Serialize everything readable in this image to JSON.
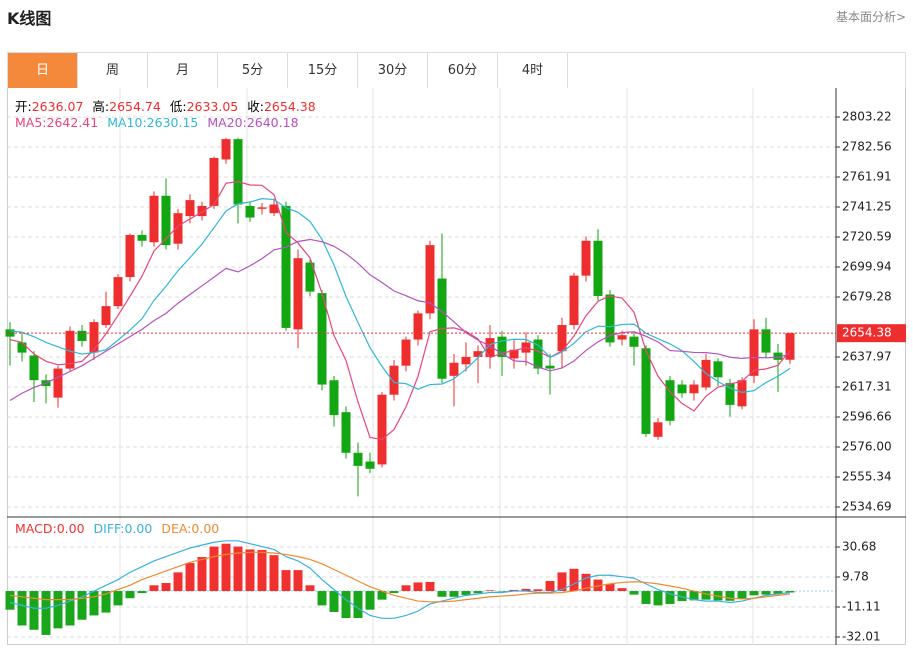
{
  "header": {
    "title": "K线图",
    "link": "基本面分析>"
  },
  "tabs": [
    {
      "label": "日",
      "selected": true
    },
    {
      "label": "周",
      "selected": false
    },
    {
      "label": "月",
      "selected": false
    },
    {
      "label": "5分",
      "selected": false
    },
    {
      "label": "15分",
      "selected": false
    },
    {
      "label": "30分",
      "selected": false
    },
    {
      "label": "60分",
      "selected": false
    },
    {
      "label": "4时",
      "selected": false
    }
  ],
  "chart_data": [
    {
      "type": "candlestick",
      "up_color": "#ee2e2e",
      "down_color": "#12a612",
      "info": [
        {
          "label": "开:",
          "value": 2636.07
        },
        {
          "label": "高:",
          "value": 2654.74
        },
        {
          "label": "低:",
          "value": 2633.05
        },
        {
          "label": "收:",
          "value": 2654.38
        }
      ],
      "last_price": 2654.38,
      "open": [
        2657,
        2648,
        2639,
        2622,
        2610,
        2630,
        2656,
        2641,
        2660,
        2673,
        2693,
        2722,
        2717,
        2749,
        2716,
        2735,
        2735,
        2742,
        2774,
        2788,
        2742,
        2740,
        2737,
        2742,
        2657,
        2703,
        2682,
        2622,
        2600,
        2572,
        2566,
        2564,
        2612,
        2632,
        2650,
        2668,
        2692,
        2625,
        2633,
        2638,
        2638,
        2652,
        2637,
        2641,
        2650,
        2632,
        2642,
        2660,
        2694,
        2718,
        2681,
        2650,
        2652,
        2644,
        2583,
        2622,
        2619,
        2613,
        2617,
        2635,
        2620,
        2604,
        2625,
        2657,
        2641,
        2636.07
      ],
      "high": [
        2662,
        2655,
        2642,
        2626,
        2632,
        2659,
        2660,
        2664,
        2683,
        2695,
        2723,
        2725,
        2752,
        2761,
        2740,
        2750,
        2745,
        2776,
        2789,
        2789,
        2745,
        2744,
        2747,
        2745,
        2712,
        2705,
        2684,
        2625,
        2604,
        2579,
        2572,
        2614,
        2636,
        2652,
        2670,
        2718,
        2723,
        2640,
        2648,
        2646,
        2660,
        2656,
        2650,
        2655,
        2653,
        2640,
        2665,
        2696,
        2721,
        2726,
        2684,
        2656,
        2655,
        2646,
        2596,
        2625,
        2622,
        2622,
        2640,
        2637,
        2623,
        2624,
        2664,
        2665,
        2647,
        2654.74
      ],
      "low": [
        2632,
        2635,
        2607,
        2606,
        2603,
        2628,
        2645,
        2636,
        2658,
        2671,
        2690,
        2714,
        2714,
        2712,
        2712,
        2730,
        2732,
        2740,
        2771,
        2730,
        2731,
        2736,
        2735,
        2656,
        2644,
        2680,
        2615,
        2590,
        2568,
        2542,
        2558,
        2562,
        2608,
        2628,
        2646,
        2664,
        2620,
        2604,
        2628,
        2620,
        2630,
        2625,
        2630,
        2632,
        2626,
        2612,
        2630,
        2657,
        2690,
        2677,
        2645,
        2646,
        2632,
        2583,
        2581,
        2591,
        2610,
        2608,
        2615,
        2618,
        2597,
        2602,
        2620,
        2637,
        2614,
        2633.05
      ],
      "close": [
        2652,
        2641,
        2622,
        2618,
        2630,
        2656,
        2649,
        2662,
        2673,
        2693,
        2722,
        2718,
        2749,
        2715,
        2737,
        2746,
        2742,
        2775,
        2788,
        2743,
        2734,
        2741,
        2743,
        2658,
        2706,
        2683,
        2619,
        2598,
        2572,
        2563,
        2561,
        2612,
        2632,
        2650,
        2668,
        2715,
        2623,
        2634,
        2638,
        2642,
        2651,
        2638,
        2643,
        2648,
        2630,
        2630,
        2660,
        2694,
        2718,
        2680,
        2648,
        2653,
        2645,
        2585,
        2593,
        2594,
        2613,
        2619,
        2636,
        2624,
        2605,
        2622,
        2657,
        2641,
        2636,
        2654.38
      ],
      "series": [
        {
          "name": "MA5:",
          "color": "#e8457c",
          "legend_value": 2642.41,
          "values": [
            2650,
            2648,
            2640,
            2635,
            2632.6,
            2633.4,
            2635,
            2643,
            2654,
            2666.6,
            2679.8,
            2693.6,
            2711,
            2719.4,
            2728.2,
            2733,
            2737.8,
            2743,
            2757.6,
            2758.8,
            2756.4,
            2756.2,
            2749.8,
            2723.8,
            2716.4,
            2706.2,
            2681.8,
            2652.8,
            2635.6,
            2607,
            2582.6,
            2581.2,
            2588,
            2603.6,
            2624.6,
            2655.4,
            2657.6,
            2658,
            2655.6,
            2650.4,
            2637.6,
            2640.6,
            2642.4,
            2644.4,
            2642,
            2637.8,
            2642.2,
            2652.4,
            2666.4,
            2676.4,
            2680,
            2678.6,
            2668.8,
            2642.2,
            2624.8,
            2614,
            2606,
            2600.8,
            2611,
            2617.2,
            2619.4,
            2621.2,
            2628.8,
            2629.8,
            2632.2,
            2642.41
          ]
        },
        {
          "name": "MA10:",
          "color": "#2fb8d8",
          "legend_value": 2630.15,
          "values": [
            2656,
            2655,
            2652,
            2648,
            2645,
            2642,
            2640,
            2641,
            2643,
            2649.6,
            2656.6,
            2664.3,
            2677,
            2686.7,
            2697.4,
            2706.4,
            2715.7,
            2727,
            2738.5,
            2743.5,
            2744.7,
            2747,
            2746.4,
            2740.7,
            2737.6,
            2731.3,
            2719,
            2701.3,
            2679.7,
            2661.7,
            2644.4,
            2631.5,
            2620.4,
            2619.6,
            2615.8,
            2619,
            2619.4,
            2623,
            2629.6,
            2637.5,
            2646.5,
            2649.1,
            2650.2,
            2650,
            2646.2,
            2637.7,
            2641.4,
            2647.4,
            2655.4,
            2659.2,
            2658.9,
            2660.4,
            2660.6,
            2654.3,
            2650.6,
            2647,
            2642.3,
            2634.8,
            2626.6,
            2621,
            2616.7,
            2613.6,
            2614.8,
            2620.4,
            2624.7,
            2630.15
          ]
        },
        {
          "name": "MA20:",
          "color": "#b651c0",
          "legend_value": 2640.18,
          "values": [
            2608,
            2613,
            2617,
            2620,
            2624,
            2628,
            2632,
            2637,
            2642,
            2647,
            2652,
            2657,
            2663,
            2668,
            2675,
            2681,
            2687,
            2693,
            2699,
            2696.6,
            2700.7,
            2705.7,
            2711.7,
            2713.7,
            2717.5,
            2718.9,
            2717.4,
            2714.2,
            2709.1,
            2702.6,
            2694.6,
            2689.3,
            2683.4,
            2680.2,
            2676.7,
            2675.2,
            2669.2,
            2662.2,
            2654.7,
            2649.6,
            2645.5,
            2640.3,
            2635.3,
            2634.8,
            2631,
            2628.4,
            2630.4,
            2635.2,
            2642.5,
            2648.4,
            2652.7,
            2654.8,
            2655.4,
            2652.2,
            2648.4,
            2642.4,
            2641.9,
            2641.1,
            2641,
            2640.1,
            2637.8,
            2637,
            2637.7,
            2637.4,
            2637.7,
            2640.18
          ]
        }
      ],
      "ylim": [
        2527.8,
        2823.2
      ],
      "yticks": [
        2803.22,
        2782.56,
        2761.91,
        2741.25,
        2720.59,
        2699.94,
        2679.28,
        2637.97,
        2617.31,
        2596.66,
        {
          "value": 2576,
          "label": "2576.00"
        },
        2555.34,
        2534.69
      ],
      "grid": true
    },
    {
      "type": "macd",
      "histogram": {
        "name": "MACD:",
        "legend_value": {
          "value": 0,
          "label": "0.00"
        },
        "up_color": "#f0312f",
        "down_color": "#1aa61a",
        "values": [
          -13,
          -24,
          -27,
          -30.6,
          -26,
          -24,
          -20,
          -17,
          -15,
          -10,
          -5,
          -1.4,
          4,
          5.6,
          13,
          19.5,
          23.7,
          31,
          33,
          31,
          29,
          28.6,
          25,
          14.6,
          14.6,
          4,
          -10,
          -14.6,
          -18.8,
          -18.8,
          -13,
          -6,
          -1.4,
          4,
          6,
          6.3,
          -4,
          -4,
          -2.8,
          -1.5,
          0.5,
          -0.3,
          0.8,
          1.5,
          1.2,
          7,
          13,
          15.5,
          12,
          8,
          5,
          2,
          -2.5,
          -9,
          -10,
          -9,
          -7,
          -6.5,
          -6,
          -6.5,
          -6.8,
          -5.5,
          -3,
          -2.5,
          -2,
          -1
        ]
      },
      "series": [
        {
          "name": "DIFF:",
          "color": "#3bb0e0",
          "legend_value": {
            "value": 0,
            "label": "0.00"
          },
          "values": [
            -8,
            -10,
            -12,
            -12,
            -10,
            -7,
            -4,
            0,
            4,
            8,
            13,
            17,
            21,
            24,
            27,
            30,
            32,
            34,
            35,
            35,
            33,
            31,
            29,
            24,
            21,
            16,
            8,
            1,
            -6,
            -12,
            -17,
            -19,
            -19,
            -17,
            -14,
            -9,
            -7,
            -5,
            -3,
            -2,
            -1,
            -1,
            0,
            0,
            -1,
            -1,
            1,
            5,
            9,
            11,
            11,
            10,
            9,
            5,
            1,
            -2,
            -4,
            -6,
            -7,
            -7,
            -8,
            -7,
            -5,
            -3,
            -2,
            -1
          ]
        },
        {
          "name": "DEA:",
          "color": "#f08a30",
          "legend_value": {
            "value": 0,
            "label": "0.00"
          },
          "values": [
            -3,
            -4,
            -5,
            -6,
            -6,
            -6,
            -5,
            -4,
            -2,
            1,
            4,
            8,
            11,
            14,
            17,
            20,
            22,
            24,
            25.5,
            26.5,
            27,
            27,
            26.5,
            25.5,
            24,
            22,
            19,
            15,
            11,
            7,
            3,
            0,
            -3,
            -5,
            -7,
            -7.5,
            -7.5,
            -7,
            -6,
            -5,
            -4,
            -3.5,
            -3,
            -2,
            -1.5,
            -1.5,
            -1,
            0,
            2,
            3.5,
            5,
            6,
            6.5,
            6,
            5,
            3.5,
            2,
            0,
            -2,
            -3.5,
            -5,
            -5.5,
            -5,
            -4,
            -3,
            -2
          ]
        }
      ],
      "ylim": [
        -37.6,
        51.6
      ],
      "yticks": [
        30.68,
        9.78,
        -11.11,
        -32.01
      ],
      "grid": true
    }
  ]
}
